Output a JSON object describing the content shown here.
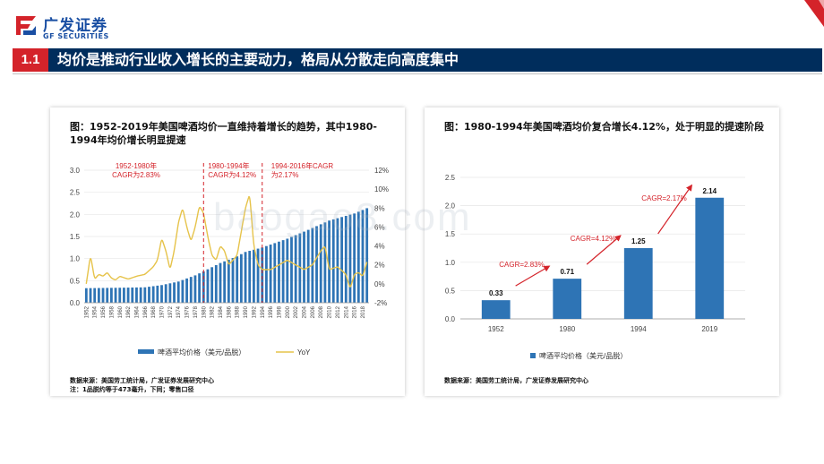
{
  "brand": {
    "name_cn": "广发证券",
    "name_en": "GF SECURITIES"
  },
  "header": {
    "number": "1.1",
    "title": "均价是推动行业收入增长的主要动力，格局从分散走向高度集中"
  },
  "watermark": "baogao8.com",
  "left_panel": {
    "caption": "图：1952-2019年美国啤酒均价一直维持着增长的趋势，其中1980-1994年均价增长明显提速",
    "source": "数据来源：美国劳工统计局，广发证券发展研究中心",
    "note": "注：1品脱约等于473毫升，下同；零售口径"
  },
  "right_panel": {
    "caption": "图：1980-1994年美国啤酒均价复合增长4.12%，处于明显的提速阶段",
    "source": "数据来源：美国劳工统计局，广发证券发展研究中心"
  },
  "colors": {
    "bar": "#2e74b5",
    "line": "#e6c34a",
    "accent": "#d4232a",
    "navy": "#002d5c"
  },
  "chart_data": [
    {
      "type": "bar+line",
      "x_start": 1952,
      "x_end": 2019,
      "x_tick_labels": [
        "1952",
        "1954",
        "1956",
        "1958",
        "1960",
        "1962",
        "1964",
        "1966",
        "1968",
        "1970",
        "1972",
        "1974",
        "1976",
        "1978",
        "1980",
        "1982",
        "1984",
        "1986",
        "1988",
        "1990",
        "1992",
        "1994",
        "1996",
        "1998",
        "2000",
        "2002",
        "2004",
        "2006",
        "2008",
        "2010",
        "2012",
        "2014",
        "2016",
        "2018"
      ],
      "ylim_left": [
        0,
        3.0
      ],
      "y_ticks_left": [
        "0.0",
        "0.5",
        "1.0",
        "1.5",
        "2.0",
        "2.5",
        "3.0"
      ],
      "ylim_right": [
        -2,
        12
      ],
      "y_ticks_right": [
        "-2%",
        "0%",
        "2%",
        "4%",
        "6%",
        "8%",
        "10%",
        "12%"
      ],
      "price_anchors": [
        [
          1952,
          0.33
        ],
        [
          1960,
          0.34
        ],
        [
          1966,
          0.35
        ],
        [
          1970,
          0.4
        ],
        [
          1974,
          0.48
        ],
        [
          1978,
          0.62
        ],
        [
          1980,
          0.71
        ],
        [
          1984,
          0.9
        ],
        [
          1988,
          1.05
        ],
        [
          1990,
          1.15
        ],
        [
          1994,
          1.25
        ],
        [
          2000,
          1.45
        ],
        [
          2005,
          1.65
        ],
        [
          2010,
          1.86
        ],
        [
          2016,
          2.02
        ],
        [
          2019,
          2.14
        ]
      ],
      "yoy_anchors": [
        [
          1952,
          0.0
        ],
        [
          1953,
          3.0
        ],
        [
          1954,
          0.5
        ],
        [
          1955,
          1.0
        ],
        [
          1956,
          0.8
        ],
        [
          1957,
          1.2
        ],
        [
          1958,
          0.6
        ],
        [
          1959,
          0.4
        ],
        [
          1960,
          0.8
        ],
        [
          1962,
          0.5
        ],
        [
          1964,
          0.8
        ],
        [
          1966,
          1.0
        ],
        [
          1968,
          1.8
        ],
        [
          1969,
          2.5
        ],
        [
          1970,
          4.8
        ],
        [
          1971,
          3.5
        ],
        [
          1972,
          1.5
        ],
        [
          1973,
          3.5
        ],
        [
          1974,
          6.5
        ],
        [
          1975,
          8.0
        ],
        [
          1976,
          6.0
        ],
        [
          1977,
          4.5
        ],
        [
          1978,
          6.0
        ],
        [
          1979,
          8.2
        ],
        [
          1980,
          7.5
        ],
        [
          1981,
          5.0
        ],
        [
          1982,
          3.0
        ],
        [
          1983,
          2.5
        ],
        [
          1984,
          4.0
        ],
        [
          1985,
          3.5
        ],
        [
          1986,
          2.0
        ],
        [
          1987,
          2.5
        ],
        [
          1988,
          3.0
        ],
        [
          1989,
          5.5
        ],
        [
          1990,
          8.0
        ],
        [
          1991,
          9.5
        ],
        [
          1992,
          4.0
        ],
        [
          1993,
          2.0
        ],
        [
          1994,
          1.5
        ],
        [
          1996,
          1.5
        ],
        [
          1998,
          2.0
        ],
        [
          2000,
          2.5
        ],
        [
          2002,
          2.0
        ],
        [
          2004,
          1.5
        ],
        [
          2006,
          2.0
        ],
        [
          2008,
          3.5
        ],
        [
          2009,
          4.0
        ],
        [
          2010,
          1.5
        ],
        [
          2012,
          1.8
        ],
        [
          2014,
          1.0
        ],
        [
          2015,
          -0.5
        ],
        [
          2016,
          1.0
        ],
        [
          2017,
          1.2
        ],
        [
          2018,
          0.8
        ],
        [
          2019,
          2.3
        ]
      ],
      "dividers": [
        1980,
        1994
      ],
      "annotations": [
        "1952-1980年\nCAGR为2.83%",
        "1980-1994年\nCAGR为4.12%",
        "1994-2016年CAGR\n为2.17%"
      ],
      "legend": [
        "啤酒平均价格（美元/品脱）",
        "YoY"
      ],
      "legend_position": "bottom"
    },
    {
      "type": "bar",
      "categories": [
        "1952",
        "1980",
        "1994",
        "2019"
      ],
      "values": [
        0.33,
        0.71,
        1.25,
        2.14
      ],
      "value_labels": [
        "0.33",
        "0.71",
        "1.25",
        "2.14"
      ],
      "ylim": [
        0,
        2.5
      ],
      "y_ticks": [
        "0.0",
        "0.5",
        "1.0",
        "1.5",
        "2.0",
        "2.5"
      ],
      "annotations": [
        "CAGR=2.83%",
        "CAGR=4.12%",
        "CAGR=2.17%"
      ],
      "legend": [
        "啤酒平均价格（美元/品脱）"
      ],
      "legend_position": "bottom"
    }
  ]
}
